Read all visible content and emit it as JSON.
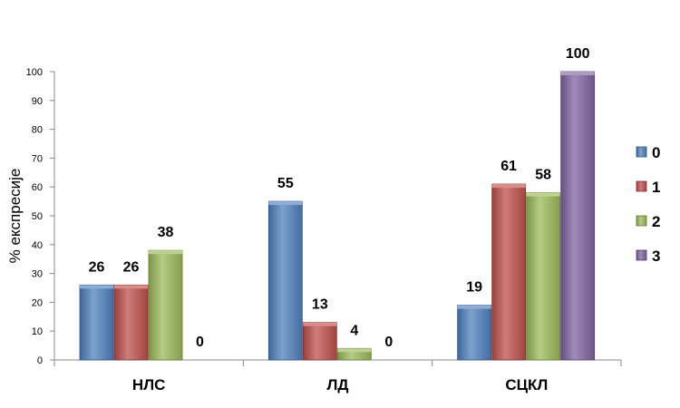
{
  "chart_data": {
    "type": "bar",
    "title": "",
    "xlabel": "",
    "ylabel": "% експресије",
    "ylim": [
      0,
      100
    ],
    "yticks": [
      0,
      10,
      20,
      30,
      40,
      50,
      60,
      70,
      80,
      90,
      100
    ],
    "categories": [
      "НЛС",
      "ЛД",
      "СЦКЛ"
    ],
    "series": [
      {
        "name": "0",
        "values": [
          26,
          55,
          19
        ],
        "color": "#4F81BD"
      },
      {
        "name": "1",
        "values": [
          26,
          13,
          61
        ],
        "color": "#C0504D"
      },
      {
        "name": "2",
        "values": [
          38,
          4,
          58
        ],
        "color": "#9BBB59"
      },
      {
        "name": "3",
        "values": [
          0,
          0,
          100
        ],
        "color": "#8064A2"
      }
    ],
    "legend_position": "right",
    "grid": false
  }
}
